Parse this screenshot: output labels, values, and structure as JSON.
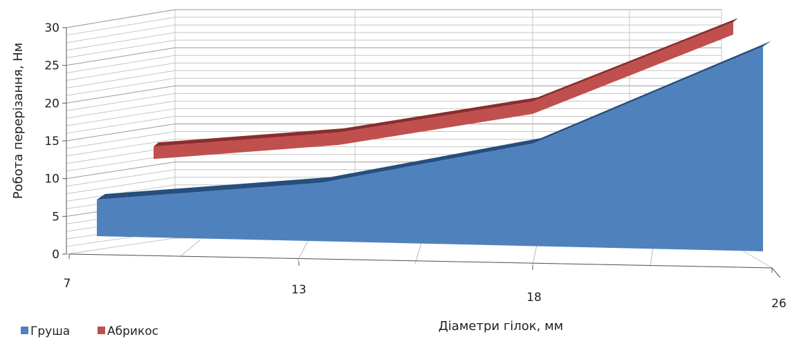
{
  "chart_data": {
    "type": "area",
    "view": "3d",
    "categories": [
      "7",
      "13",
      "18",
      "26"
    ],
    "series": [
      {
        "name": "Груша",
        "values": [
          5,
          8,
          14,
          28
        ],
        "color": "#4F81BD"
      },
      {
        "name": "Абрикос",
        "values": [
          7.5,
          11,
          17,
          30
        ],
        "color": "#C0504D"
      }
    ],
    "ylim": [
      0,
      30
    ],
    "y_ticks": [
      "0",
      "5",
      "10",
      "15",
      "20",
      "25",
      "30"
    ],
    "ylabel": "Робота перерізання, Нм",
    "xlabel": "Діаметри гілок, мм",
    "grid": true,
    "legend_position": "bottom-left"
  }
}
